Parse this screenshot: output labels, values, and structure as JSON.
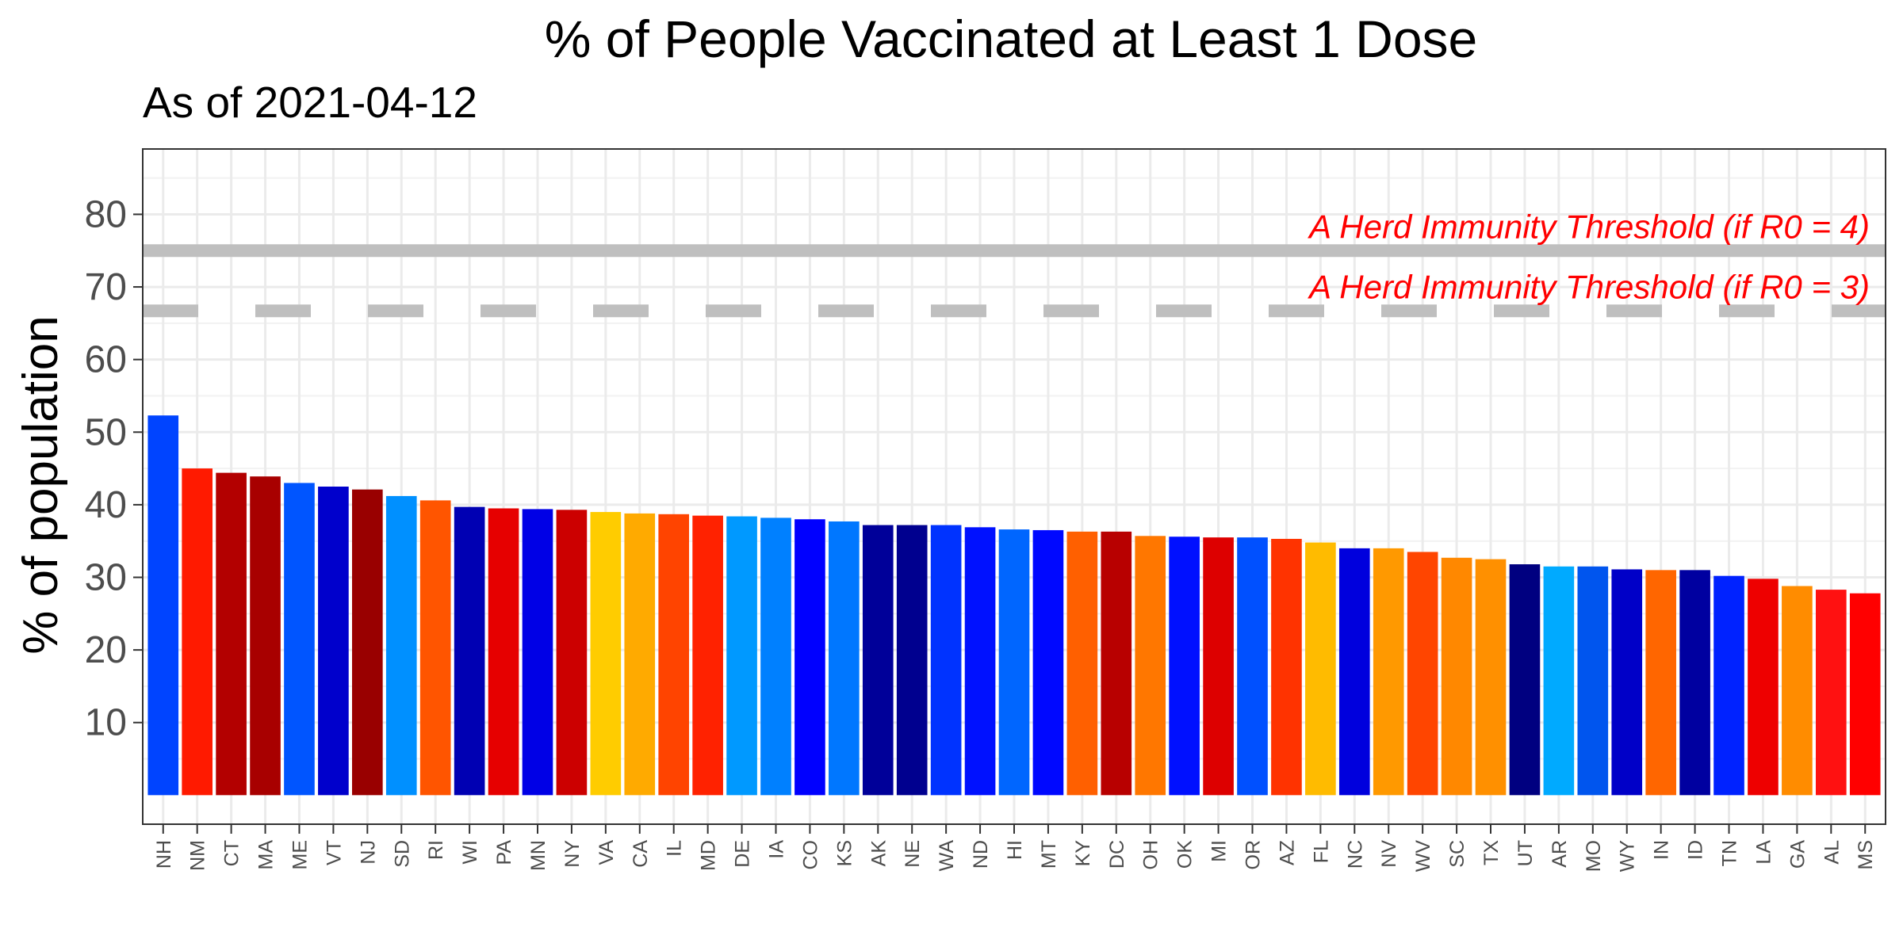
{
  "chart_data": {
    "type": "bar",
    "title": "% of People Vaccinated at Least 1 Dose",
    "subtitle": "As of 2021-04-12",
    "xlabel": "",
    "ylabel": "% of population",
    "ylim": [
      -4,
      89
    ],
    "yticks": [
      10,
      20,
      30,
      40,
      50,
      60,
      70,
      80
    ],
    "grid": true,
    "legend": "none",
    "categories": [
      "NH",
      "NM",
      "CT",
      "MA",
      "ME",
      "VT",
      "NJ",
      "SD",
      "RI",
      "WI",
      "PA",
      "MN",
      "NY",
      "VA",
      "CA",
      "IL",
      "MD",
      "DE",
      "IA",
      "CO",
      "KS",
      "AK",
      "NE",
      "WA",
      "ND",
      "HI",
      "MT",
      "KY",
      "DC",
      "OH",
      "OK",
      "MI",
      "OR",
      "AZ",
      "FL",
      "NC",
      "NV",
      "WV",
      "SC",
      "TX",
      "UT",
      "AR",
      "MO",
      "WY",
      "IN",
      "ID",
      "TN",
      "LA",
      "GA",
      "AL",
      "MS"
    ],
    "values": [
      52.3,
      45.0,
      44.4,
      43.9,
      43.0,
      42.5,
      42.1,
      41.2,
      40.6,
      39.7,
      39.5,
      39.4,
      39.3,
      39.0,
      38.8,
      38.7,
      38.5,
      38.4,
      38.2,
      38.0,
      37.7,
      37.2,
      37.2,
      37.2,
      36.9,
      36.6,
      36.5,
      36.3,
      36.3,
      35.7,
      35.6,
      35.5,
      35.5,
      35.3,
      34.8,
      34.0,
      34.0,
      33.5,
      32.7,
      32.5,
      31.8,
      31.5,
      31.5,
      31.1,
      31.0,
      31.0,
      30.2,
      29.8,
      28.8,
      28.3,
      27.8
    ],
    "colors": [
      "#0044ff",
      "#ff1a00",
      "#b30000",
      "#a80000",
      "#0055ff",
      "#0000cc",
      "#990000",
      "#0090ff",
      "#ff5500",
      "#0000b3",
      "#e60000",
      "#0000e6",
      "#cc0000",
      "#ffcc00",
      "#ffaa00",
      "#ff4400",
      "#ff2200",
      "#0099ff",
      "#0080ff",
      "#0000ff",
      "#0077ff",
      "#000099",
      "#00008f",
      "#0033ff",
      "#0011ff",
      "#0066ff",
      "#0008ff",
      "#ff6000",
      "#b80000",
      "#ff7700",
      "#0010ff",
      "#dd0000",
      "#0050ff",
      "#ff3300",
      "#ffbb00",
      "#0000dd",
      "#ff9900",
      "#ff4500",
      "#ff8800",
      "#ff9000",
      "#000080",
      "#00aaff",
      "#0055ee",
      "#0000c8",
      "#ff6600",
      "#0000a0",
      "#0022ff",
      "#ee0000",
      "#ff8c00",
      "#ff1111",
      "#ff0000"
    ],
    "reference_lines": [
      {
        "value": 75,
        "style": "solid",
        "color": "#bfbfbf",
        "label": "A Herd Immunity Threshold (if R0 = 4)"
      },
      {
        "value": 66.7,
        "style": "dashed",
        "color": "#bfbfbf",
        "label": "A Herd Immunity Threshold (if R0 = 3)"
      }
    ]
  }
}
